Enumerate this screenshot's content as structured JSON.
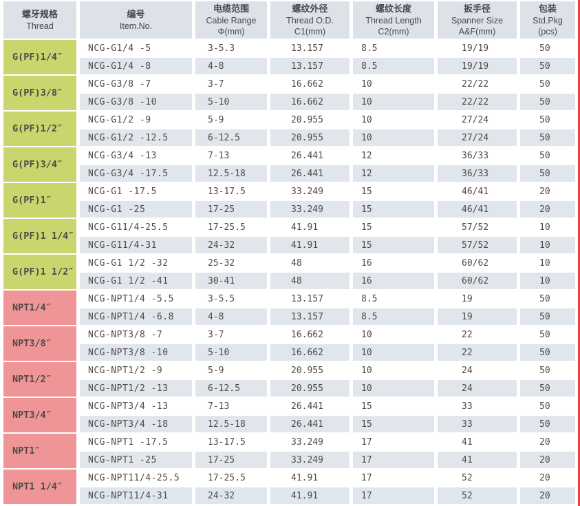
{
  "colors": {
    "headerbg": "#dce2e8",
    "headertext": "#43494f",
    "stripe": "#e0e6ec",
    "green": "#cad56e",
    "pink": "#ef9597",
    "text": "#4e4a47",
    "redline": "#e8403a"
  },
  "table": {
    "columns": [
      {
        "zh": "螺牙规格",
        "en": "Thread",
        "unit": ""
      },
      {
        "zh": "编号",
        "en": "Item.No.",
        "unit": ""
      },
      {
        "zh": "电缆范围",
        "en": "Cable Range",
        "unit": "Φ(mm)"
      },
      {
        "zh": "螺纹外径",
        "en": "Thread O.D.",
        "unit": "C1(mm)"
      },
      {
        "zh": "螺纹长度",
        "en": "Thread Length",
        "unit": "C2(mm)"
      },
      {
        "zh": "扳手径",
        "en": "Spanner Size",
        "unit": "A&F(mm)"
      },
      {
        "zh": "包装",
        "en": "Std.Pkg",
        "unit": "(pcs)"
      }
    ],
    "groups": [
      {
        "thread": "G(PF)1/4″",
        "type": "g",
        "rows": [
          [
            "NCG-G1/4 -5",
            "3-5.3",
            "13.157",
            "8.5",
            "19/19",
            "50"
          ],
          [
            "NCG-G1/4 -8",
            "4-8",
            "13.157",
            "8.5",
            "19/19",
            "50"
          ]
        ]
      },
      {
        "thread": "G(PF)3/8″",
        "type": "g",
        "rows": [
          [
            "NCG-G3/8 -7",
            "3-7",
            "16.662",
            "10",
            "22/22",
            "50"
          ],
          [
            "NCG-G3/8 -10",
            "5-10",
            "16.662",
            "10",
            "22/22",
            "50"
          ]
        ]
      },
      {
        "thread": "G(PF)1/2″",
        "type": "g",
        "rows": [
          [
            "NCG-G1/2 -9",
            "5-9",
            "20.955",
            "10",
            "27/24",
            "50"
          ],
          [
            "NCG-G1/2 -12.5",
            "6-12.5",
            "20.955",
            "10",
            "27/24",
            "50"
          ]
        ]
      },
      {
        "thread": "G(PF)3/4″",
        "type": "g",
        "rows": [
          [
            "NCG-G3/4 -13",
            "7-13",
            "26.441",
            "12",
            "36/33",
            "50"
          ],
          [
            "NCG-G3/4 -17.5",
            "12.5-18",
            "26.441",
            "12",
            "36/33",
            "50"
          ]
        ]
      },
      {
        "thread": "G(PF)1″",
        "type": "g",
        "rows": [
          [
            "NCG-G1 -17.5",
            "13-17.5",
            "33.249",
            "15",
            "46/41",
            "20"
          ],
          [
            "NCG-G1 -25",
            "17-25",
            "33.249",
            "15",
            "46/41",
            "20"
          ]
        ]
      },
      {
        "thread": "G(PF)1 1/4″",
        "type": "g",
        "rows": [
          [
            "NCG-G11/4-25.5",
            "17-25.5",
            "41.91",
            "15",
            "57/52",
            "10"
          ],
          [
            "NCG-G11/4-31",
            "24-32",
            "41.91",
            "15",
            "57/52",
            "10"
          ]
        ]
      },
      {
        "thread": "G(PF)1 1/2″",
        "type": "g",
        "rows": [
          [
            "NCG-G1 1/2 -32",
            "25-32",
            "48",
            "16",
            "60/62",
            "10"
          ],
          [
            "NCG-G1 1/2 -41",
            "30-41",
            "48",
            "16",
            "60/62",
            "10"
          ]
        ]
      },
      {
        "thread": "NPT1/4″",
        "type": "npt",
        "rows": [
          [
            "NCG-NPT1/4 -5.5",
            "3-5.5",
            "13.157",
            "8.5",
            "19",
            "50"
          ],
          [
            "NCG-NPT1/4 -6.8",
            "4-8",
            "13.157",
            "8.5",
            "19",
            "50"
          ]
        ]
      },
      {
        "thread": "NPT3/8″",
        "type": "npt",
        "rows": [
          [
            "NCG-NPT3/8 -7",
            "3-7",
            "16.662",
            "10",
            "22",
            "50"
          ],
          [
            "NCG-NPT3/8 -10",
            "5-10",
            "16.662",
            "10",
            "22",
            "50"
          ]
        ]
      },
      {
        "thread": "NPT1/2″",
        "type": "npt",
        "rows": [
          [
            "NCG-NPT1/2 -9",
            "5-9",
            "20.955",
            "10",
            "24",
            "50"
          ],
          [
            "NCG-NPT1/2 -13",
            "6-12.5",
            "20.955",
            "10",
            "24",
            "50"
          ]
        ]
      },
      {
        "thread": "NPT3/4″",
        "type": "npt",
        "rows": [
          [
            "NCG-NPT3/4 -13",
            "7-13",
            "26.441",
            "15",
            "33",
            "50"
          ],
          [
            "NCG-NPT3/4 -18",
            "12.5-18",
            "26.441",
            "15",
            "33",
            "50"
          ]
        ]
      },
      {
        "thread": "NPT1″",
        "type": "npt",
        "rows": [
          [
            "NCG-NPT1 -17.5",
            "13-17.5",
            "33.249",
            "17",
            "41",
            "20"
          ],
          [
            "NCG-NPT1 -25",
            "17-25",
            "33.249",
            "17",
            "41",
            "20"
          ]
        ]
      },
      {
        "thread": "NPT1 1/4″",
        "type": "npt",
        "rows": [
          [
            "NCG-NPT11/4-25.5",
            "17-25.5",
            "41.91",
            "17",
            "52",
            "20"
          ],
          [
            "NCG-NPT11/4-31",
            "24-32",
            "41.91",
            "17",
            "52",
            "20"
          ]
        ]
      }
    ]
  }
}
